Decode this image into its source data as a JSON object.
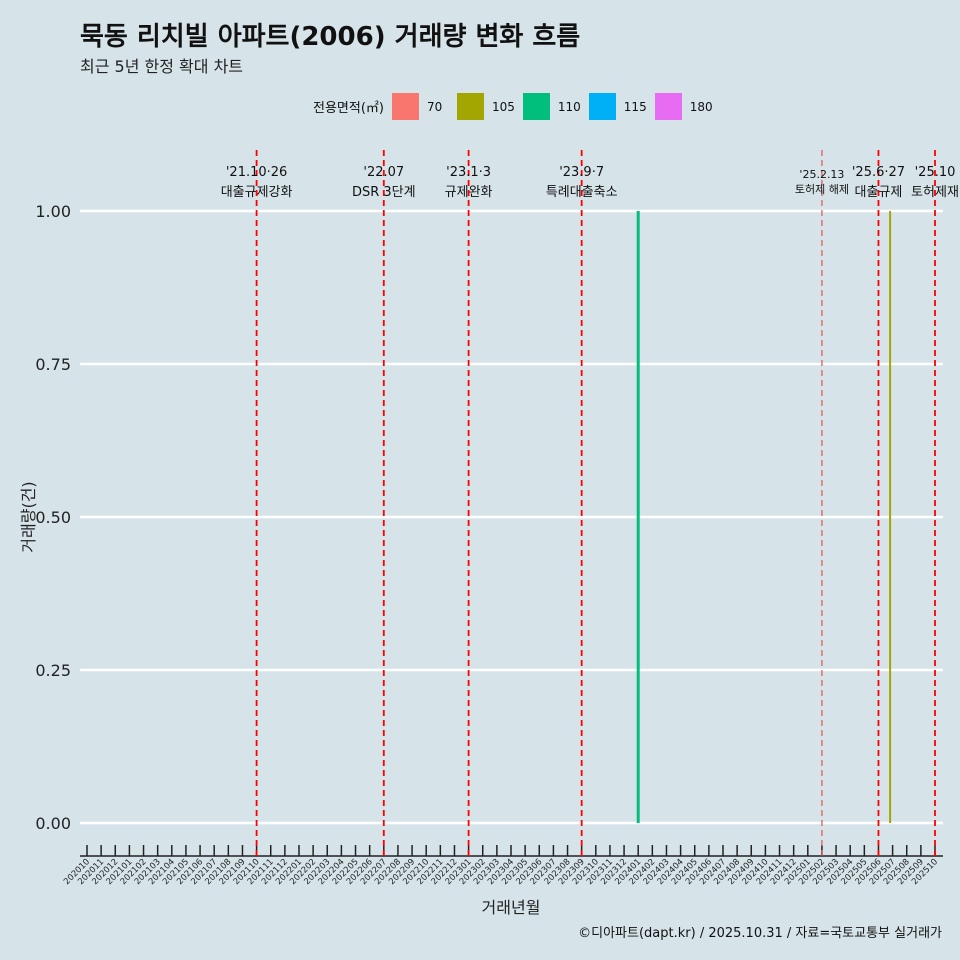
{
  "title": "묵동 리치빌 아파트(2006) 거래량 변화 흐름",
  "subtitle": "최근 5년 한정 확대 차트",
  "caption": "©디아파트(dapt.kr) / 2025.10.31 / 자료=국토교통부 실거래가",
  "chart_data": {
    "type": "bar",
    "xlabel": "거래년월",
    "ylabel": "거래량(건)",
    "ylim": [
      0,
      1
    ],
    "yticks": [
      "0.00",
      "0.25",
      "0.50",
      "0.75",
      "1.00"
    ],
    "categories": [
      "202010",
      "202011",
      "202012",
      "202101",
      "202102",
      "202103",
      "202104",
      "202105",
      "202106",
      "202107",
      "202108",
      "202109",
      "202110",
      "202111",
      "202112",
      "202201",
      "202202",
      "202203",
      "202204",
      "202205",
      "202206",
      "202207",
      "202208",
      "202209",
      "202210",
      "202211",
      "202212",
      "202301",
      "202302",
      "202303",
      "202304",
      "202305",
      "202306",
      "202307",
      "202308",
      "202309",
      "202310",
      "202311",
      "202312",
      "202401",
      "202402",
      "202403",
      "202404",
      "202405",
      "202406",
      "202407",
      "202408",
      "202409",
      "202410",
      "202411",
      "202412",
      "202501",
      "202502",
      "202503",
      "202504",
      "202505",
      "202506",
      "202507",
      "202508",
      "202509",
      "202510"
    ],
    "legend": {
      "title": "전용면적(㎡)",
      "placement": "top",
      "items": [
        {
          "label": "70",
          "color": "#F8766D"
        },
        {
          "label": "105",
          "color": "#A3A500"
        },
        {
          "label": "110",
          "color": "#00BF7D"
        },
        {
          "label": "115",
          "color": "#00B0F6"
        },
        {
          "label": "180",
          "color": "#E76BF3"
        }
      ]
    },
    "series": [
      {
        "name": "110",
        "color": "#00BF7D",
        "points": [
          {
            "x": "202401",
            "y": 1
          }
        ]
      },
      {
        "name": "105",
        "color": "#A3A500",
        "points": [
          {
            "x": "202507",
            "y": 1
          }
        ]
      }
    ],
    "annotations": [
      {
        "x": "202110",
        "date": "'21.10·26",
        "label": "대출규제강화"
      },
      {
        "x": "202207",
        "date": "'22.07",
        "label": "DSR 3단계"
      },
      {
        "x": "202301",
        "date": "'23.1·3",
        "label": "규제완화"
      },
      {
        "x": "202309",
        "date": "'23.9·7",
        "label": "특례대출축소"
      },
      {
        "x": "202502",
        "date": "'25.2.13",
        "label": "토허제 해제",
        "small": true
      },
      {
        "x": "202506",
        "date": "'25.6·27",
        "label": "대출규제"
      },
      {
        "x": "202510",
        "date": "'25.10",
        "label": "토허제재"
      }
    ]
  }
}
